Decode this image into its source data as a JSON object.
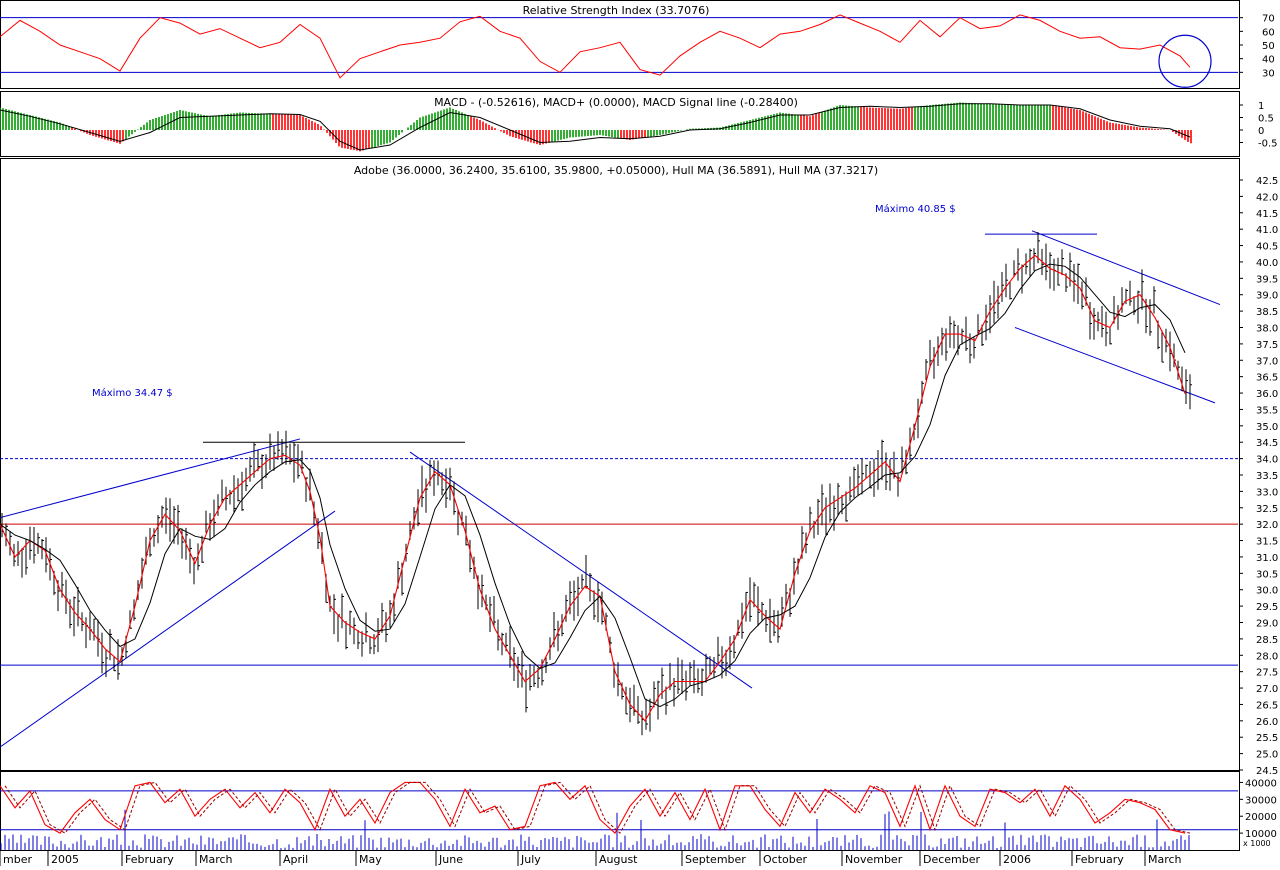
{
  "chart_data": [
    {
      "type": "line",
      "panel": "rsi",
      "title": "Relative Strength Index (33.7076)",
      "yticks": [
        "70",
        "60",
        "50",
        "40",
        "30"
      ],
      "ylim": [
        20,
        80
      ],
      "levels": [
        70,
        30
      ],
      "colors": {
        "line": "#ff0000",
        "levels": "#0000cc",
        "marker": "#0000cc"
      },
      "x": [
        0,
        20,
        40,
        60,
        80,
        100,
        120,
        140,
        160,
        180,
        200,
        220,
        240,
        260,
        280,
        300,
        320,
        340,
        360,
        380,
        400,
        420,
        440,
        460,
        480,
        500,
        520,
        540,
        560,
        580,
        600,
        620,
        640,
        660,
        680,
        700,
        720,
        740,
        760,
        780,
        800,
        820,
        840,
        860,
        880,
        900,
        920,
        940,
        960,
        980,
        1000,
        1020,
        1040,
        1060,
        1080,
        1100,
        1120,
        1140,
        1160,
        1180,
        1190
      ],
      "values": [
        56,
        68,
        60,
        50,
        45,
        40,
        31,
        55,
        70,
        66,
        58,
        62,
        55,
        48,
        52,
        65,
        55,
        26,
        40,
        45,
        50,
        52,
        55,
        67,
        71,
        60,
        55,
        38,
        30,
        45,
        48,
        52,
        32,
        28,
        42,
        52,
        60,
        55,
        48,
        58,
        60,
        65,
        72,
        66,
        60,
        52,
        68,
        56,
        70,
        62,
        64,
        72,
        68,
        60,
        55,
        56,
        48,
        47,
        50,
        42,
        33.7
      ]
    },
    {
      "type": "bar",
      "panel": "macd",
      "title": "MACD - (-0.52616), MACD+ (0.0000), MACD Signal line (-0.28400)",
      "yticks": [
        "1",
        "0.5",
        "0",
        "-0.5"
      ],
      "ylim": [
        -1.0,
        1.4
      ],
      "colors": {
        "up": "#009900",
        "down": "#ff0000",
        "signal": "#000000"
      },
      "x": [
        0,
        30,
        60,
        90,
        120,
        150,
        180,
        210,
        240,
        270,
        300,
        320,
        340,
        360,
        390,
        420,
        450,
        480,
        510,
        540,
        570,
        600,
        630,
        660,
        690,
        720,
        750,
        780,
        810,
        840,
        870,
        900,
        930,
        960,
        990,
        1020,
        1050,
        1080,
        1110,
        1140,
        1170,
        1190
      ],
      "values": [
        0.9,
        0.6,
        0.3,
        -0.2,
        -0.55,
        0.4,
        0.8,
        0.55,
        0.7,
        0.65,
        0.6,
        0.2,
        -0.7,
        -0.85,
        -0.5,
        0.5,
        0.9,
        0.4,
        -0.25,
        -0.6,
        -0.3,
        -0.2,
        -0.4,
        -0.2,
        0.05,
        0.1,
        0.4,
        0.7,
        0.55,
        1.0,
        0.9,
        0.85,
        1.0,
        1.1,
        1.05,
        1.0,
        1.0,
        0.8,
        0.3,
        0.1,
        0.0,
        -0.53
      ],
      "signal": [
        0.8,
        0.55,
        0.25,
        -0.1,
        -0.45,
        -0.1,
        0.5,
        0.55,
        0.6,
        0.65,
        0.62,
        0.35,
        -0.45,
        -0.8,
        -0.6,
        0.1,
        0.7,
        0.5,
        0.0,
        -0.5,
        -0.45,
        -0.3,
        -0.35,
        -0.25,
        0.0,
        0.05,
        0.3,
        0.6,
        0.6,
        0.9,
        0.95,
        0.9,
        0.95,
        1.05,
        1.05,
        1.0,
        1.0,
        0.85,
        0.4,
        0.15,
        0.05,
        -0.28
      ]
    },
    {
      "type": "line",
      "panel": "price",
      "title": "Adobe (36.0000, 36.2400, 35.6100, 35.9800, +0.05000), Hull MA (36.5891), Hull MA (37.3217)",
      "yticks": [
        "42.5",
        "42.0",
        "41.5",
        "41.0",
        "40.5",
        "40.0",
        "39.5",
        "39.0",
        "38.5",
        "38.0",
        "37.5",
        "37.0",
        "36.5",
        "36.0",
        "35.5",
        "35.0",
        "34.5",
        "34.0",
        "33.5",
        "33.0",
        "32.5",
        "32.0",
        "31.5",
        "31.0",
        "30.5",
        "30.0",
        "29.5",
        "29.0",
        "28.5",
        "28.0",
        "27.5",
        "27.0",
        "26.5",
        "26.0",
        "25.5",
        "25.0",
        "24.5"
      ],
      "ylim": [
        24.5,
        42.5
      ],
      "xticks": [
        "mber",
        "2005",
        "February",
        "March",
        "April",
        "May",
        "June",
        "July",
        "August",
        "September",
        "October",
        "November",
        "December",
        "2006",
        "February",
        "March"
      ],
      "annotations": [
        "Máximo 34.47 $",
        "Máximo 40.85 $"
      ],
      "levels": [
        {
          "value": 34.0,
          "style": "dashed",
          "color": "#0000cc"
        },
        {
          "value": 32.0,
          "style": "solid",
          "color": "#cc0000"
        },
        {
          "value": 27.7,
          "style": "solid",
          "color": "#0000cc"
        }
      ],
      "colors": {
        "bars": "#000000",
        "hull_fast": "#ff0000",
        "hull_slow": "#000000",
        "trend": "#0000cc"
      },
      "x": [
        0,
        15,
        30,
        45,
        60,
        75,
        90,
        105,
        120,
        135,
        150,
        165,
        180,
        195,
        210,
        225,
        240,
        255,
        270,
        285,
        300,
        310,
        320,
        330,
        345,
        360,
        375,
        390,
        405,
        420,
        435,
        450,
        465,
        480,
        495,
        510,
        525,
        540,
        555,
        570,
        585,
        600,
        615,
        630,
        645,
        660,
        675,
        690,
        705,
        720,
        735,
        750,
        765,
        780,
        795,
        810,
        825,
        840,
        855,
        870,
        885,
        900,
        915,
        930,
        945,
        960,
        975,
        990,
        1005,
        1020,
        1035,
        1050,
        1065,
        1080,
        1095,
        1110,
        1125,
        1140,
        1155,
        1170,
        1185
      ],
      "values": [
        32.0,
        31.0,
        31.5,
        31.2,
        30.0,
        29.3,
        28.8,
        28.2,
        27.8,
        29.5,
        31.5,
        32.3,
        31.8,
        30.8,
        32.0,
        32.8,
        33.2,
        33.6,
        34.0,
        34.1,
        33.8,
        33.0,
        31.6,
        29.5,
        29.0,
        28.7,
        28.5,
        29.2,
        31.0,
        32.8,
        33.6,
        33.2,
        31.8,
        30.0,
        28.8,
        28.0,
        27.2,
        27.6,
        28.5,
        29.5,
        30.1,
        29.8,
        27.5,
        26.5,
        26.0,
        26.8,
        27.2,
        27.2,
        27.2,
        27.8,
        28.5,
        29.7,
        29.2,
        28.8,
        30.5,
        31.8,
        32.5,
        32.8,
        33.1,
        33.5,
        33.9,
        33.3,
        35.0,
        36.8,
        37.8,
        37.8,
        37.6,
        38.5,
        39.2,
        39.8,
        40.2,
        39.8,
        39.6,
        39.2,
        38.2,
        38.0,
        38.8,
        39.0,
        38.3,
        37.4,
        35.98
      ]
    },
    {
      "type": "line",
      "panel": "stochastic",
      "yticks": [
        "40000",
        "30000",
        "20000",
        "10000"
      ],
      "ylim": [
        0,
        45000
      ],
      "axis_label": "x 1000",
      "levels": [
        35000,
        12000
      ],
      "colors": {
        "k": "#ff0000",
        "d": "#990000",
        "volume": "#0000cc",
        "levels": "#0000cc"
      },
      "x": [
        0,
        15,
        30,
        45,
        60,
        75,
        90,
        105,
        120,
        135,
        150,
        165,
        180,
        195,
        210,
        225,
        240,
        255,
        270,
        285,
        300,
        315,
        330,
        345,
        360,
        375,
        390,
        405,
        420,
        435,
        450,
        465,
        480,
        495,
        510,
        525,
        540,
        555,
        570,
        585,
        600,
        615,
        630,
        645,
        660,
        675,
        690,
        705,
        720,
        735,
        750,
        765,
        780,
        795,
        810,
        825,
        840,
        855,
        870,
        885,
        900,
        915,
        930,
        945,
        960,
        975,
        990,
        1005,
        1020,
        1035,
        1050,
        1065,
        1080,
        1095,
        1110,
        1125,
        1140,
        1155,
        1170,
        1185
      ],
      "values": [
        38000,
        25000,
        35000,
        15000,
        10000,
        22000,
        30000,
        18000,
        12000,
        38000,
        40000,
        28000,
        36000,
        20000,
        30000,
        36000,
        25000,
        34000,
        22000,
        36000,
        28000,
        12000,
        36000,
        20000,
        30000,
        16000,
        34000,
        40000,
        40000,
        30000,
        14000,
        36000,
        22000,
        26000,
        12000,
        14000,
        38000,
        40000,
        30000,
        38000,
        18000,
        10000,
        26000,
        36000,
        20000,
        34000,
        18000,
        36000,
        12000,
        38000,
        38000,
        24000,
        14000,
        34000,
        22000,
        36000,
        30000,
        22000,
        38000,
        34000,
        14000,
        38000,
        12000,
        38000,
        20000,
        14000,
        36000,
        34000,
        28000,
        36000,
        20000,
        38000,
        30000,
        16000,
        22000,
        30000,
        28000,
        24000,
        12000,
        10000
      ]
    }
  ]
}
